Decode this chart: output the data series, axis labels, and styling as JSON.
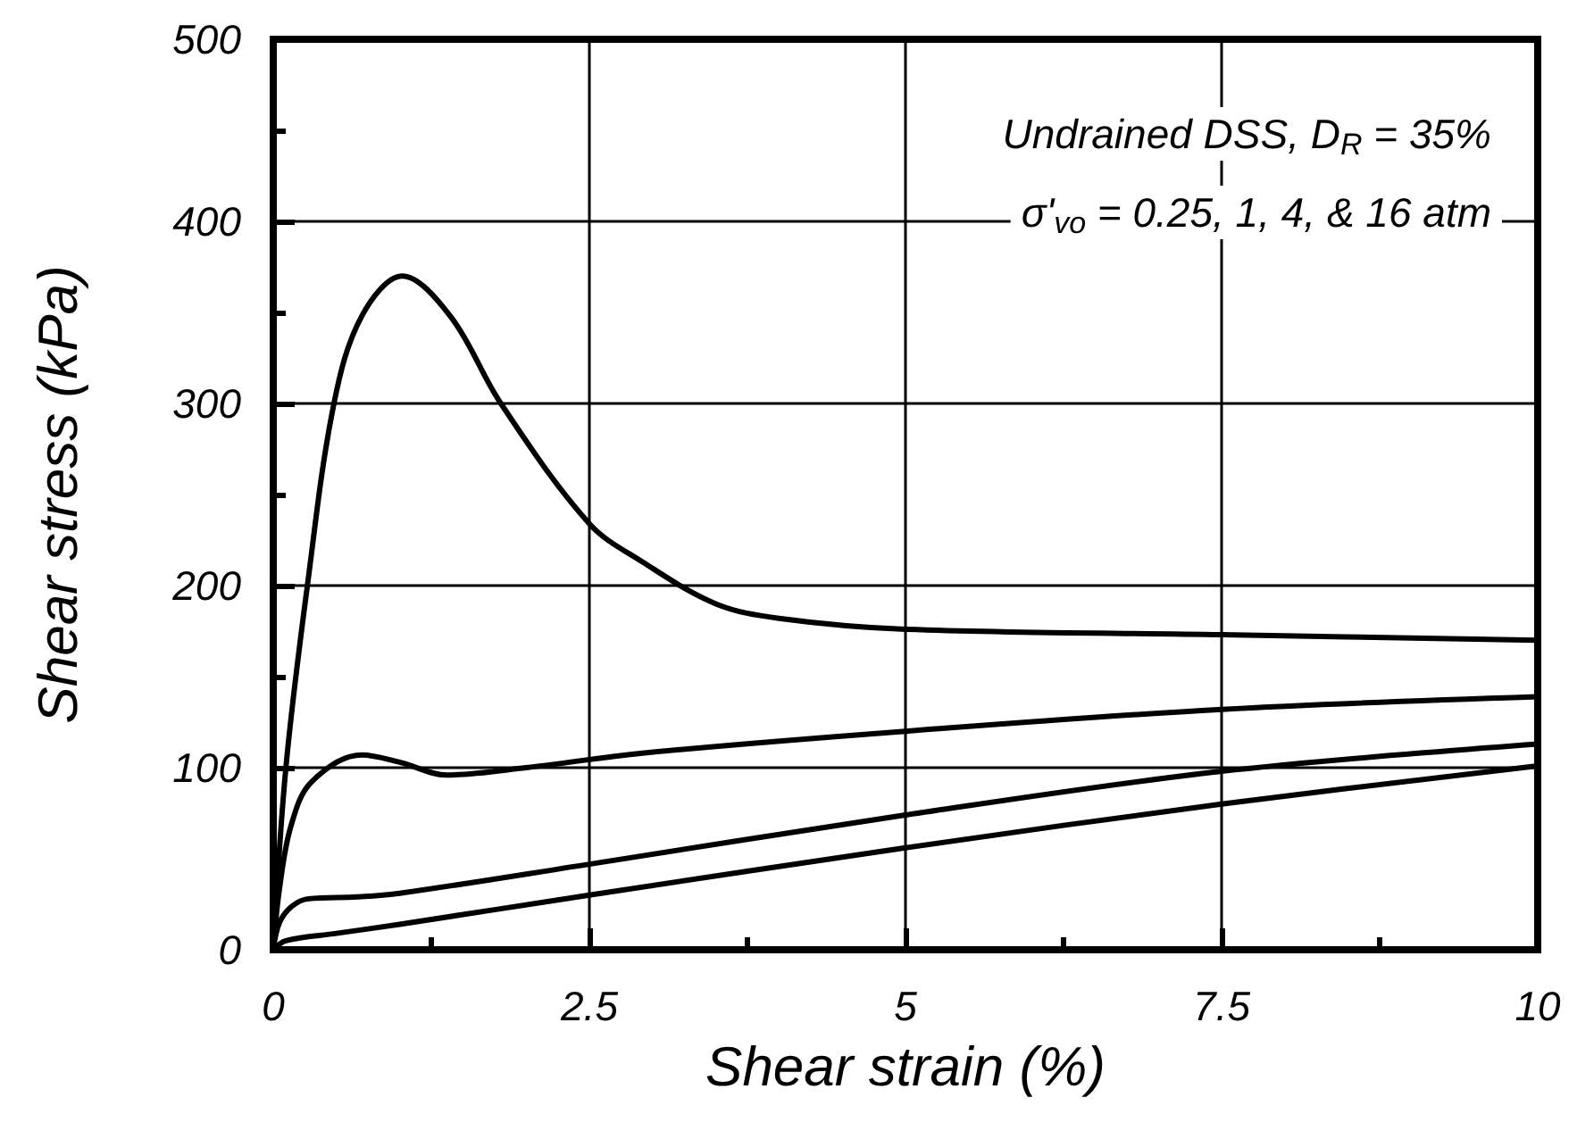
{
  "chart_data": {
    "type": "line",
    "xlabel": "Shear strain (%)",
    "ylabel": "Shear stress (kPa)",
    "annotations": [
      "Undrained DSS, D$_{R}$ = 35%",
      "σ'$_{vo}$ = 0.25, 1, 4, & 16 atm"
    ],
    "series": [
      {
        "color": "#000000",
        "x": [
          0,
          0.1,
          0.27,
          0.48,
          0.7,
          1.02,
          1.4,
          1.8,
          2.5,
          2.92,
          3.5,
          4,
          5,
          7.5,
          10
        ],
        "values": [
          0,
          100,
          200,
          300,
          348,
          370,
          348,
          300,
          234,
          213,
          190,
          182,
          176,
          173,
          170
        ]
      },
      {
        "color": "#000000",
        "x": [
          0,
          0.05,
          0.14,
          0.3,
          0.7,
          1.0,
          1.37,
          2.0,
          2.92,
          5,
          7.5,
          10
        ],
        "values": [
          0,
          34,
          68,
          92,
          107,
          103,
          96,
          100,
          108,
          120,
          132,
          139
        ]
      },
      {
        "color": "#000000",
        "x": [
          0,
          0.05,
          0.15,
          0.28,
          0.66,
          1.0,
          2.5,
          5,
          7.5,
          10
        ],
        "values": [
          0,
          15,
          24,
          28,
          29,
          31,
          47,
          74,
          98,
          113
        ]
      },
      {
        "color": "#000000",
        "x": [
          0,
          0.1,
          0.5,
          1.0,
          2.5,
          5,
          7.5,
          10
        ],
        "values": [
          0,
          5,
          9,
          14,
          30,
          56,
          80,
          101
        ]
      }
    ],
    "xlim": [
      0,
      10
    ],
    "xticks": [
      0,
      2.5,
      5,
      7.5,
      10
    ],
    "ylim": [
      0,
      500
    ],
    "yticks": [
      0,
      100,
      200,
      300,
      400,
      500
    ],
    "grid": true,
    "marker": "none",
    "line_style": "solid"
  }
}
